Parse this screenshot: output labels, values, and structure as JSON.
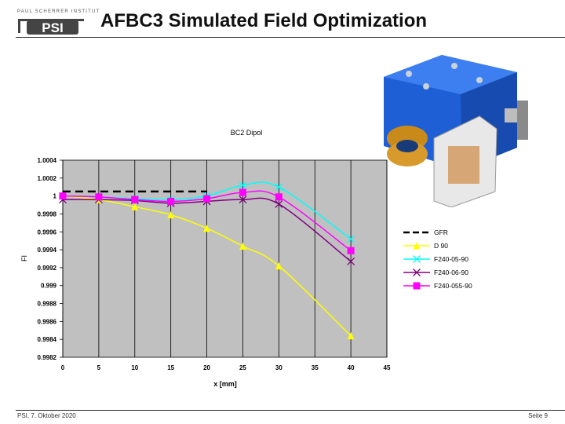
{
  "slide": {
    "title": "AFBC3 Simulated Field Optimization",
    "logo_tagline": "PAUL SCHERRER INSTITUT",
    "logo_mark": "PSI",
    "footer_left": "PSI, 7. Oktober 2020",
    "footer_right": "Seite 9"
  },
  "colors": {
    "plot_bg": "#c0c0c0",
    "magnet_blue": "#1f5fd6"
  },
  "chart_data": {
    "type": "line",
    "title": "BC2 Dipol",
    "xlabel": "x [mm]",
    "ylabel": "FI",
    "xlim": [
      0,
      45
    ],
    "ylim": [
      0.9982,
      1.0004
    ],
    "xticks": [
      "0",
      "5",
      "10",
      "15",
      "20",
      "25",
      "30",
      "35",
      "40",
      "45"
    ],
    "yticks": [
      "1.0004",
      "1.0002",
      "1",
      "0.9998",
      "0.9996",
      "0.9994",
      "0.9992",
      "0.999",
      "0.9988",
      "0.9986",
      "0.9984",
      "0.9982"
    ],
    "grid": "vertical",
    "legend_position": "right",
    "series": [
      {
        "name": "GFR",
        "color": "#000000",
        "style": "dashed",
        "marker": "none",
        "x": [
          0,
          20
        ],
        "y": [
          1.00005,
          1.00005
        ]
      },
      {
        "name": "D 90",
        "color": "#ffff00",
        "style": "solid",
        "marker": "triangle",
        "x": [
          0,
          5,
          10,
          15,
          20,
          25,
          30,
          40
        ],
        "y": [
          1.0,
          0.99996,
          0.99988,
          0.99979,
          0.99964,
          0.99944,
          0.99922,
          0.99844
        ]
      },
      {
        "name": "F240-05-90",
        "color": "#00ffff",
        "style": "solid",
        "marker": "x",
        "x": [
          0,
          5,
          10,
          15,
          20,
          25,
          30,
          40
        ],
        "y": [
          1.0,
          0.99999,
          0.99997,
          0.99996,
          1.0,
          1.00012,
          1.0001,
          0.99952
        ]
      },
      {
        "name": "F240-06-90",
        "color": "#800080",
        "style": "solid",
        "marker": "x",
        "x": [
          0,
          5,
          10,
          15,
          20,
          25,
          30,
          40
        ],
        "y": [
          0.99996,
          0.99996,
          0.99995,
          0.99992,
          0.99994,
          0.99996,
          0.99991,
          0.99927
        ]
      },
      {
        "name": "F240-055-90",
        "color": "#ff00ff",
        "style": "solid",
        "marker": "square",
        "x": [
          0,
          5,
          10,
          15,
          20,
          25,
          30,
          40
        ],
        "y": [
          1.0,
          0.99999,
          0.99996,
          0.99994,
          0.99997,
          1.00004,
          0.99999,
          0.99939
        ]
      }
    ]
  }
}
